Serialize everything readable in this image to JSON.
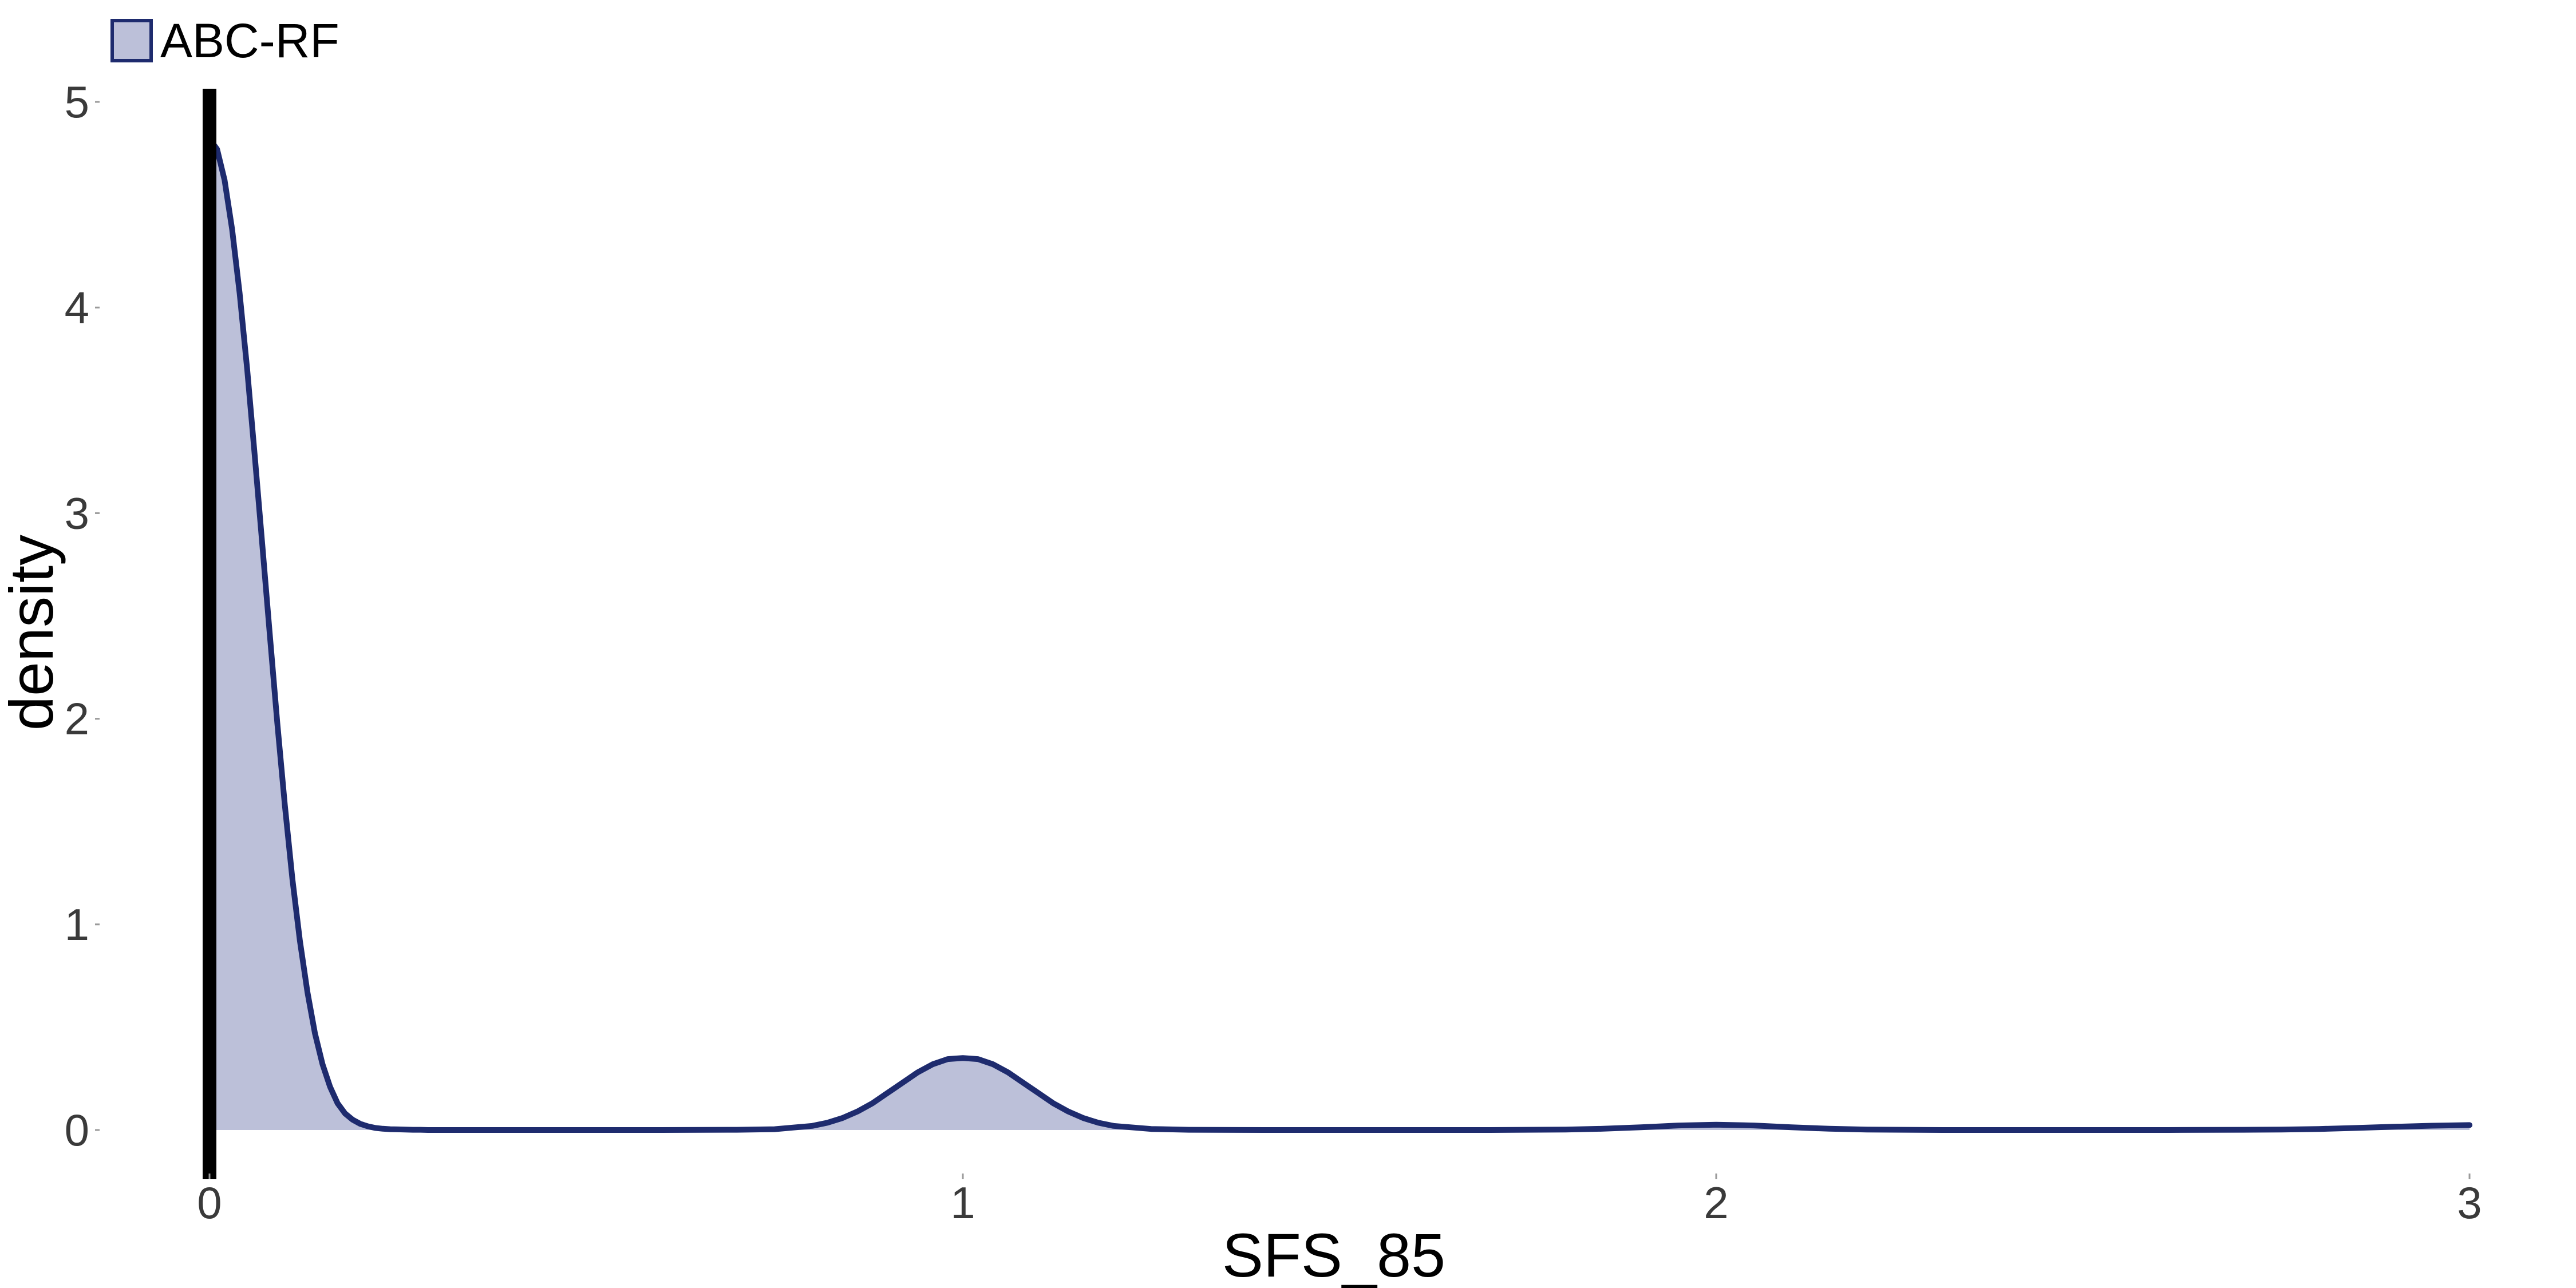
{
  "chart_data": {
    "type": "area",
    "title": "",
    "xlabel": "SFS_85",
    "ylabel": "density",
    "xlim": [
      0,
      3
    ],
    "ylim": [
      0,
      5
    ],
    "x_ticks": [
      "0",
      "1",
      "2",
      "3"
    ],
    "y_ticks": [
      "0",
      "1",
      "2",
      "3",
      "4",
      "5"
    ],
    "grid": false,
    "legend_position": "top-left",
    "vline_x": 0,
    "series": [
      {
        "name": "ABC-RF",
        "fill_color": "#bcc0d9",
        "line_color": "#1e2b6e",
        "x": [
          0.0,
          0.01,
          0.02,
          0.03,
          0.04,
          0.05,
          0.06,
          0.07,
          0.08,
          0.09,
          0.1,
          0.11,
          0.12,
          0.13,
          0.14,
          0.15,
          0.16,
          0.17,
          0.18,
          0.19,
          0.2,
          0.21,
          0.22,
          0.23,
          0.24,
          0.25,
          0.26,
          0.27,
          0.28,
          0.29,
          0.3,
          0.35,
          0.4,
          0.5,
          0.6,
          0.7,
          0.75,
          0.8,
          0.82,
          0.84,
          0.86,
          0.88,
          0.9,
          0.92,
          0.94,
          0.96,
          0.98,
          1.0,
          1.02,
          1.04,
          1.06,
          1.08,
          1.1,
          1.12,
          1.14,
          1.16,
          1.18,
          1.2,
          1.25,
          1.3,
          1.4,
          1.5,
          1.6,
          1.7,
          1.8,
          1.85,
          1.9,
          1.95,
          2.0,
          2.05,
          2.1,
          2.15,
          2.2,
          2.3,
          2.4,
          2.5,
          2.6,
          2.7,
          2.75,
          2.8,
          2.85,
          2.9,
          2.95,
          3.0
        ],
        "y": [
          4.82,
          4.77,
          4.62,
          4.38,
          4.07,
          3.7,
          3.28,
          2.85,
          2.41,
          1.98,
          1.58,
          1.22,
          0.92,
          0.67,
          0.47,
          0.32,
          0.21,
          0.13,
          0.08,
          0.05,
          0.03,
          0.018,
          0.01,
          0.006,
          0.004,
          0.003,
          0.002,
          0.001,
          0.001,
          0.0,
          0.0,
          0.0,
          0.0,
          0.0,
          0.0,
          0.001,
          0.004,
          0.02,
          0.035,
          0.058,
          0.09,
          0.13,
          0.18,
          0.23,
          0.28,
          0.32,
          0.345,
          0.35,
          0.345,
          0.32,
          0.28,
          0.23,
          0.18,
          0.13,
          0.09,
          0.058,
          0.035,
          0.02,
          0.005,
          0.001,
          0.0,
          0.0,
          0.0,
          0.0,
          0.002,
          0.006,
          0.013,
          0.022,
          0.026,
          0.022,
          0.013,
          0.006,
          0.002,
          0.0,
          0.0,
          0.0,
          0.0,
          0.001,
          0.002,
          0.005,
          0.01,
          0.016,
          0.021,
          0.024
        ]
      }
    ]
  }
}
